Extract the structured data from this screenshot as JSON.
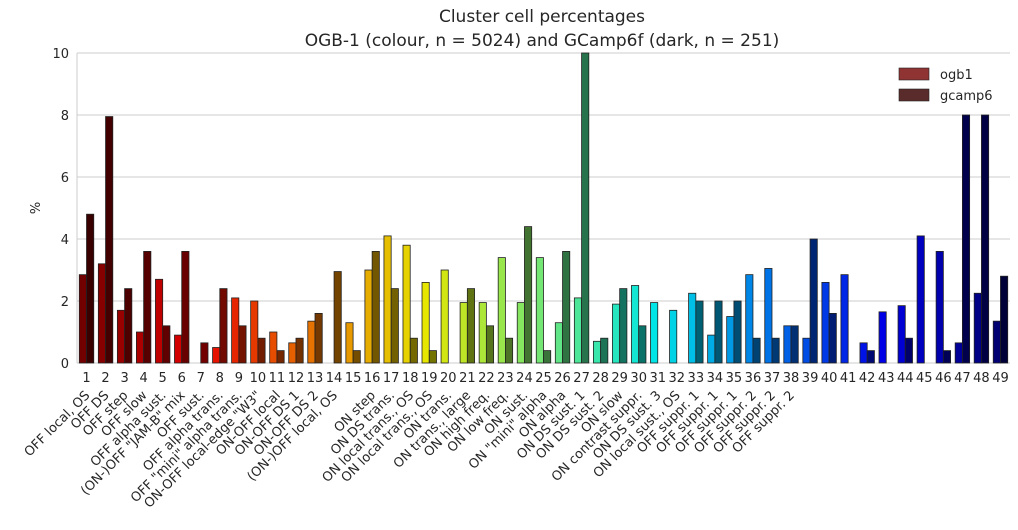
{
  "chart_data": {
    "type": "bar",
    "title": "Cluster cell percentages",
    "subtitle": "OGB-1 (colour, n = 5024) and GCamp6f (dark, n = 251)",
    "ylabel": "%",
    "xlabel": "",
    "ylim": [
      0,
      10
    ],
    "yticks": [
      "0",
      "2",
      "4",
      "6",
      "8",
      "10"
    ],
    "grid": true,
    "legend_placement": "top-right",
    "categories": [
      "1",
      "2",
      "3",
      "4",
      "5",
      "6",
      "7",
      "8",
      "9",
      "10",
      "11",
      "12",
      "13",
      "14",
      "15",
      "16",
      "17",
      "18",
      "19",
      "20",
      "21",
      "22",
      "23",
      "24",
      "25",
      "26",
      "27",
      "28",
      "29",
      "30",
      "31",
      "32",
      "33",
      "34",
      "35",
      "36",
      "37",
      "38",
      "39",
      "40",
      "41",
      "42",
      "43",
      "44",
      "45",
      "46",
      "47",
      "48",
      "49"
    ],
    "category_names": [
      "OFF local, OS",
      "OFF DS",
      "OFF step",
      "OFF slow",
      "OFF alpha sust.",
      "(ON-)OFF \"JAM-B\" mix",
      "OFF sust.",
      "OFF alpha trans.",
      "OFF \"mini\" alpha trans.",
      "ON-OFF local-edge \"W3\"",
      "ON-OFF local",
      "ON-OFF DS 1",
      "ON-OFF DS 2",
      "(ON-)OFF local, OS",
      "ON step",
      "ON DS trans.",
      "ON local trans., OS",
      "ON local trans., OS",
      "ON trans.",
      "ON trans., large",
      "ON high freq.",
      "ON low freq.",
      "ON sust.",
      "ON \"mini\" alpha",
      "ON alpha",
      "ON DS sust. 1",
      "ON DS sust. 2",
      "ON slow",
      "ON contrast suppr.",
      "ON DS sust. 3",
      "ON local sust., OS",
      "OFF suppr. 1",
      "OFF suppr. 1",
      "OFF suppr. 1",
      "OFF suppr. 2",
      "OFF suppr. 2",
      "OFF suppr. 2"
    ],
    "category_name_slots": [
      1,
      2,
      3,
      4,
      5,
      6,
      7,
      8,
      9,
      10,
      11,
      12,
      13,
      14,
      16,
      17,
      18,
      19,
      20,
      21,
      22,
      23,
      24,
      25,
      26,
      27,
      28,
      29,
      30,
      31,
      32,
      33,
      34,
      35,
      36,
      37,
      38
    ],
    "series": [
      {
        "name": "ogb1",
        "values": [
          2.85,
          3.2,
          1.7,
          1.0,
          2.7,
          0.9,
          0.0,
          0.5,
          2.1,
          2.0,
          1.0,
          0.65,
          1.35,
          0.0,
          1.3,
          3.0,
          4.1,
          3.8,
          2.6,
          3.0,
          1.95,
          1.95,
          3.4,
          1.95,
          3.4,
          1.3,
          2.1,
          0.7,
          1.9,
          2.5,
          1.95,
          1.7,
          2.25,
          0.9,
          1.5,
          2.85,
          3.05,
          1.2,
          0.8,
          2.6,
          2.85,
          0.65,
          1.65,
          1.85,
          4.1,
          3.6,
          0.65,
          2.25,
          1.35
        ]
      },
      {
        "name": "gcamp6",
        "values": [
          4.8,
          7.95,
          2.4,
          3.6,
          1.2,
          3.6,
          0.65,
          2.4,
          1.2,
          0.8,
          0.4,
          0.8,
          1.6,
          2.95,
          0.4,
          3.6,
          2.4,
          0.8,
          0.4,
          0.0,
          2.4,
          1.2,
          0.8,
          4.4,
          0.4,
          3.6,
          10.0,
          0.8,
          2.4,
          1.2,
          0.0,
          0.0,
          2.0,
          2.0,
          2.0,
          0.8,
          0.8,
          1.2,
          4.0,
          1.6,
          0.0,
          0.4,
          0.0,
          0.8,
          0.0,
          0.4,
          8.0,
          8.0,
          2.8
        ]
      }
    ],
    "palette_note": "ogb1 bars use per-cluster hues (jet-like), gcamp6 bars are darker shades of the same hue",
    "colors": {
      "legend_ogb1": "#8f3333",
      "legend_gcamp6": "#5a2b2b",
      "grid": "#cccccc",
      "axis": "#262626"
    }
  }
}
